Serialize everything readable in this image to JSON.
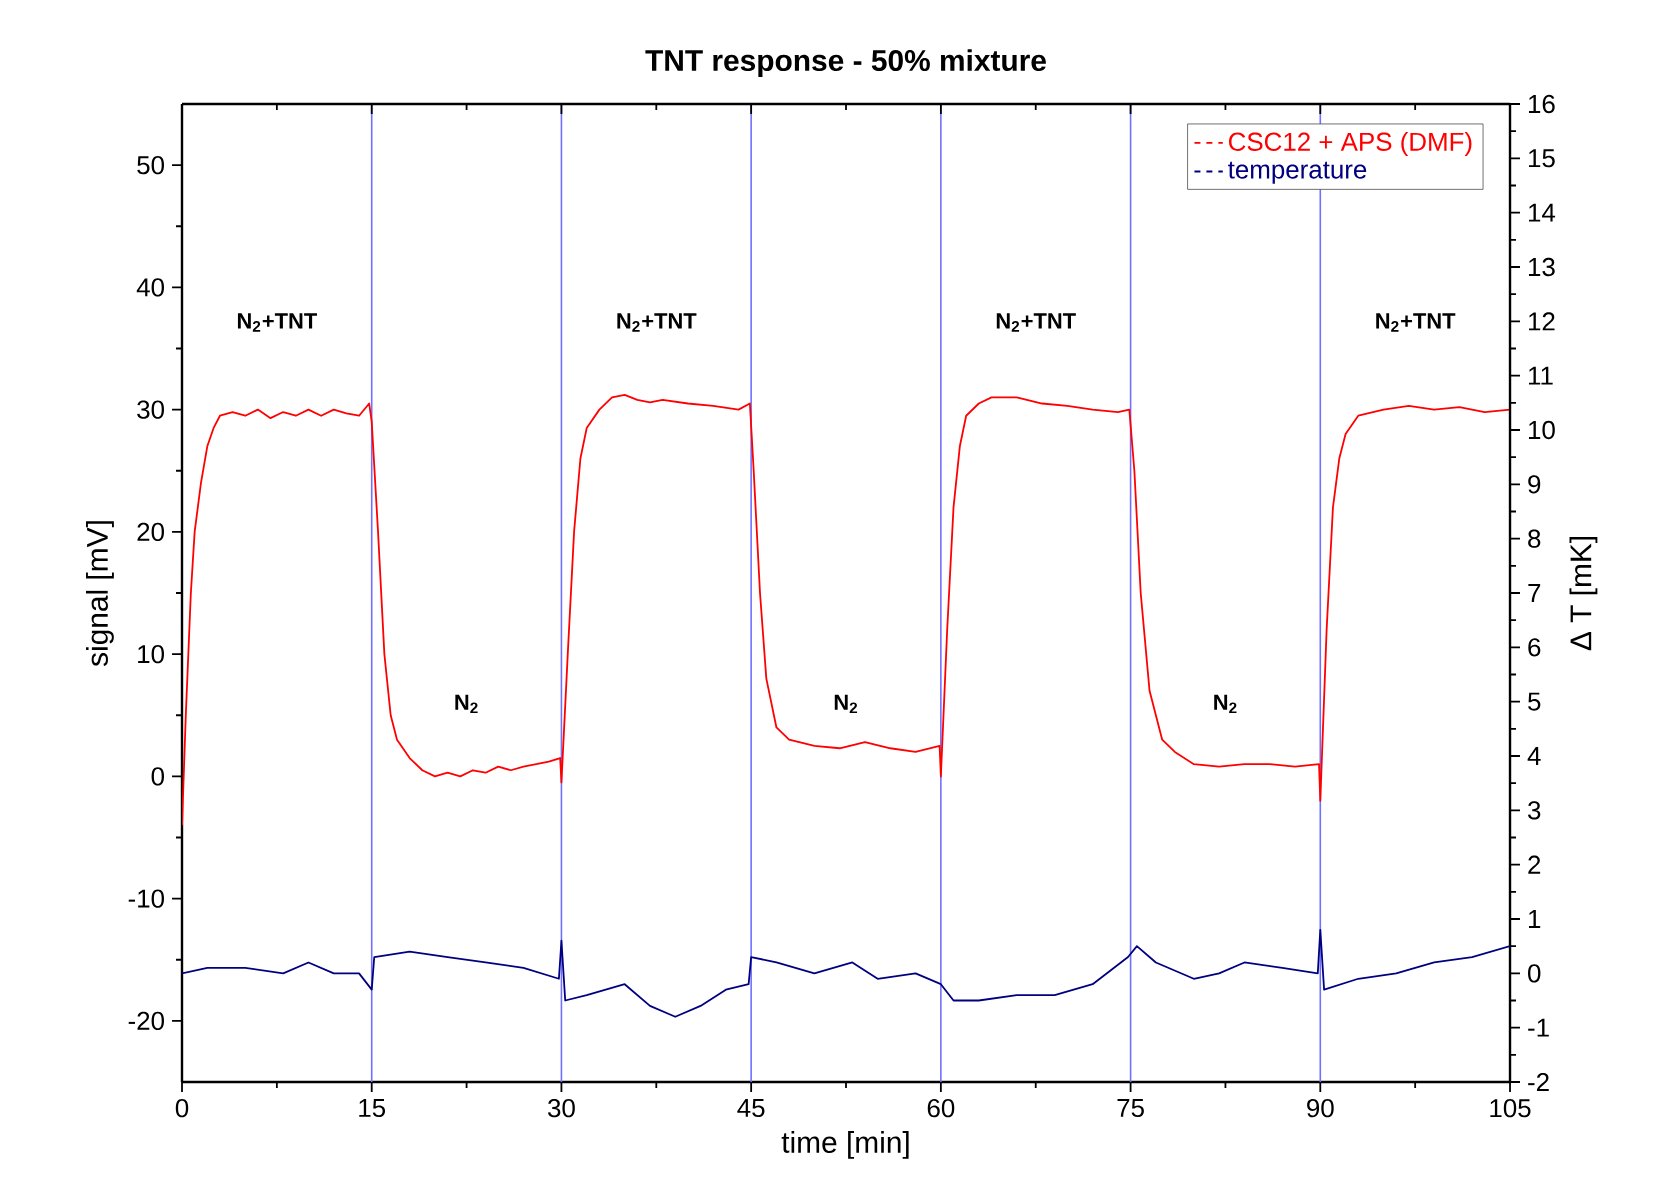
{
  "chart_data": {
    "type": "line",
    "title": "TNT response - 50% mixture",
    "xlabel": "time [min]",
    "ylabel": "signal [mV]",
    "y2label": "Δ T [mK]",
    "xlim": [
      0,
      105
    ],
    "xticks": [
      0,
      15,
      30,
      45,
      60,
      75,
      90,
      105
    ],
    "ylim": [
      -25,
      55
    ],
    "yticks": [
      -20,
      -10,
      0,
      10,
      20,
      30,
      40,
      50
    ],
    "y2lim": [
      -2,
      16
    ],
    "y2ticks": [
      -2,
      -1,
      0,
      1,
      2,
      3,
      4,
      5,
      6,
      7,
      8,
      9,
      10,
      11,
      12,
      13,
      14,
      15,
      16
    ],
    "legend": "top right",
    "marker": "none",
    "line_style": "solid",
    "grid": false,
    "ref_lines": [
      {
        "axis": "x",
        "value": 15,
        "color": "#7070ff"
      },
      {
        "axis": "x",
        "value": 30,
        "color": "#7070ff"
      },
      {
        "axis": "x",
        "value": 45,
        "color": "#7070ff"
      },
      {
        "axis": "x",
        "value": 60,
        "color": "#7070ff"
      },
      {
        "axis": "x",
        "value": 75,
        "color": "#7070ff"
      },
      {
        "axis": "x",
        "value": 90,
        "color": "#7070ff"
      }
    ],
    "annotations": [
      "N$_{2}$+TNT",
      "N$_{2}$",
      "N$_{2}$+TNT",
      "N$_{2}$",
      "N$_{2}$+TNT",
      "N$_{2}$",
      "N$_{2}$+TNT"
    ],
    "series": [
      {
        "name": "CSC12 + APS (DMF)",
        "color": "#ff0000",
        "x": [
          0,
          0.3,
          0.7,
          1,
          1.5,
          2,
          2.5,
          3,
          4,
          5,
          6,
          7,
          8,
          9,
          10,
          11,
          12,
          13,
          14,
          14.8,
          15,
          15.5,
          16,
          16.5,
          17,
          18,
          19,
          20,
          21,
          22,
          23,
          24,
          25,
          26,
          27,
          28,
          29,
          29.9,
          30,
          30.5,
          31,
          31.5,
          32,
          33,
          34,
          35,
          36,
          37,
          38,
          40,
          42,
          44,
          44.9,
          45.2,
          45.7,
          46.2,
          47,
          48,
          50,
          52,
          54,
          56,
          58,
          59.9,
          60,
          60.5,
          61,
          61.5,
          62,
          63,
          64,
          66,
          68,
          70,
          72,
          74,
          74.9,
          75.3,
          75.8,
          76.5,
          77.5,
          78.5,
          80,
          82,
          84,
          86,
          88,
          89.9,
          90,
          90.5,
          91,
          91.5,
          92,
          93,
          95,
          97,
          99,
          101,
          103,
          105
        ],
        "values": [
          -4,
          5,
          15,
          20,
          24,
          27,
          28.5,
          29.5,
          29.8,
          29.5,
          30,
          29.3,
          29.8,
          29.5,
          30,
          29.5,
          30,
          29.7,
          29.5,
          30.5,
          29,
          20,
          10,
          5,
          3,
          1.5,
          0.5,
          0,
          0.3,
          0,
          0.5,
          0.3,
          0.8,
          0.5,
          0.8,
          1,
          1.2,
          1.5,
          -0.5,
          10,
          20,
          26,
          28.5,
          30,
          31,
          31.2,
          30.8,
          30.6,
          30.8,
          30.5,
          30.3,
          30,
          30.5,
          25,
          15,
          8,
          4,
          3,
          2.5,
          2.3,
          2.8,
          2.3,
          2,
          2.5,
          0,
          12,
          22,
          27,
          29.5,
          30.5,
          31,
          31,
          30.5,
          30.3,
          30,
          29.8,
          30,
          25,
          15,
          7,
          3,
          2,
          1,
          0.8,
          1,
          1,
          0.8,
          1,
          -2,
          12,
          22,
          26,
          28,
          29.5,
          30,
          30.3,
          30,
          30.2,
          29.8,
          30
        ]
      },
      {
        "name": "temperature",
        "color": "#000080",
        "axis": "y2",
        "x": [
          0,
          2,
          5,
          8,
          10,
          12,
          14,
          15,
          15.2,
          18,
          21,
          24,
          27,
          29.8,
          30,
          30.3,
          32,
          35,
          37,
          39,
          41,
          43,
          44.8,
          45,
          47,
          50,
          53,
          55,
          58,
          60,
          61,
          63,
          66,
          69,
          72,
          74.8,
          75.5,
          77,
          80,
          82,
          84,
          87,
          89.8,
          90,
          90.3,
          93,
          96,
          99,
          102,
          105
        ],
        "values": [
          0,
          0.1,
          0.1,
          0,
          0.2,
          0,
          0,
          -0.3,
          0.3,
          0.4,
          0.3,
          0.2,
          0.1,
          -0.1,
          0.6,
          -0.5,
          -0.4,
          -0.2,
          -0.6,
          -0.8,
          -0.6,
          -0.3,
          -0.2,
          0.3,
          0.2,
          0,
          0.2,
          -0.1,
          0,
          -0.2,
          -0.5,
          -0.5,
          -0.4,
          -0.4,
          -0.2,
          0.3,
          0.5,
          0.2,
          -0.1,
          0,
          0.2,
          0.1,
          0,
          0.8,
          -0.3,
          -0.1,
          0,
          0.2,
          0.3,
          0.5
        ]
      }
    ]
  }
}
